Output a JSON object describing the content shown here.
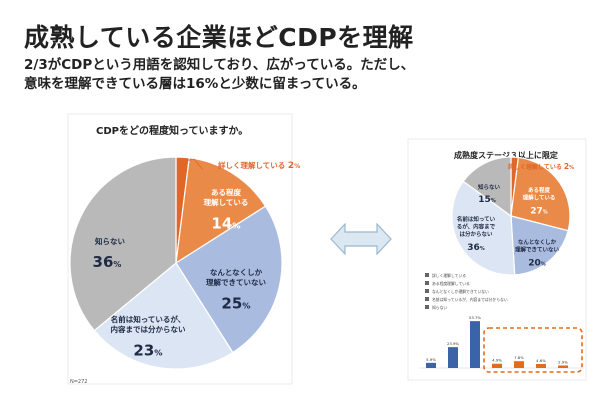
{
  "slide": {
    "title": "成熟している企業ほどCDPを理解",
    "subtitle_line1": "2/3がCDPという用語を認知しており、広がっている。ただし、",
    "subtitle_line2": "意味を理解できている層は16%と少数に留まっている。"
  },
  "colors": {
    "detail": "#e0672a",
    "some": "#ea8a48",
    "vague": "#a9bce0",
    "name_only": "#dbe5f3",
    "unknown": "#b9b9b9",
    "bar_blue": "#3b63a8",
    "bar_orange": "#e36c1c",
    "highlight_box": "#e36c1c",
    "arrow_fill": "#dbe8f2",
    "arrow_stroke": "#9bb8cf"
  },
  "chart_data": [
    {
      "type": "pie",
      "title": "CDPをどの程度知っていますか。",
      "footnote": "N=272",
      "slices": [
        {
          "label": "詳しく理解している",
          "value": 2,
          "text_value": "2",
          "unit": "%",
          "color": "#e0672a",
          "text_color": "#e0672a"
        },
        {
          "label": "ある程度理解している",
          "value": 14,
          "text_value": "14",
          "unit": "%",
          "color": "#ea8a48",
          "text_color": "#ffffff"
        },
        {
          "label": "なんとなくしか理解できていない",
          "value": 25,
          "text_value": "25",
          "unit": "%",
          "color": "#a9bce0",
          "text_color": "#1f2a44"
        },
        {
          "label": "名前は知っているが、内容までは分からない",
          "value": 23,
          "text_value": "23",
          "unit": "%",
          "color": "#dbe5f3",
          "text_color": "#1f2a44"
        },
        {
          "label": "知らない",
          "value": 36,
          "text_value": "36",
          "unit": "%",
          "color": "#b9b9b9",
          "text_color": "#1f2a44"
        }
      ]
    },
    {
      "type": "pie",
      "title": "成熟度ステージ３以上に限定",
      "slices": [
        {
          "label": "詳しく理解している",
          "value": 2,
          "text_value": "2",
          "unit": "%",
          "color": "#e0672a"
        },
        {
          "label": "ある程度理解している",
          "value": 27,
          "text_value": "27",
          "unit": "%",
          "color": "#ea8a48"
        },
        {
          "label": "なんとなくしか理解できていない",
          "value": 20,
          "text_value": "20",
          "unit": "%",
          "color": "#a9bce0"
        },
        {
          "label": "名前は知っているが、内容までは分からない",
          "value": 36,
          "text_value": "36",
          "unit": "%",
          "color": "#dbe5f3"
        },
        {
          "label": "知らない",
          "value": 15,
          "text_value": "15",
          "unit": "%",
          "color": "#b9b9b9"
        }
      ]
    },
    {
      "type": "bar",
      "legend": [
        "詳しく理解している",
        "ある程度理解している",
        "なんとなくしか理解できていない",
        "名前は知っているが、内容までは分からない",
        "知らない"
      ],
      "ylim": [
        0,
        55
      ],
      "values": [
        5.9,
        23.9,
        53.7,
        4.9,
        7.8,
        4.6,
        2.9
      ],
      "value_labels": [
        "5.9%",
        "23.9%",
        "53.7%",
        "4.9%",
        "7.8%",
        "4.6%",
        "2.9%"
      ],
      "colors": [
        "#3b63a8",
        "#3b63a8",
        "#3b63a8",
        "#e36c1c",
        "#e36c1c",
        "#e36c1c",
        "#e36c1c"
      ]
    }
  ]
}
